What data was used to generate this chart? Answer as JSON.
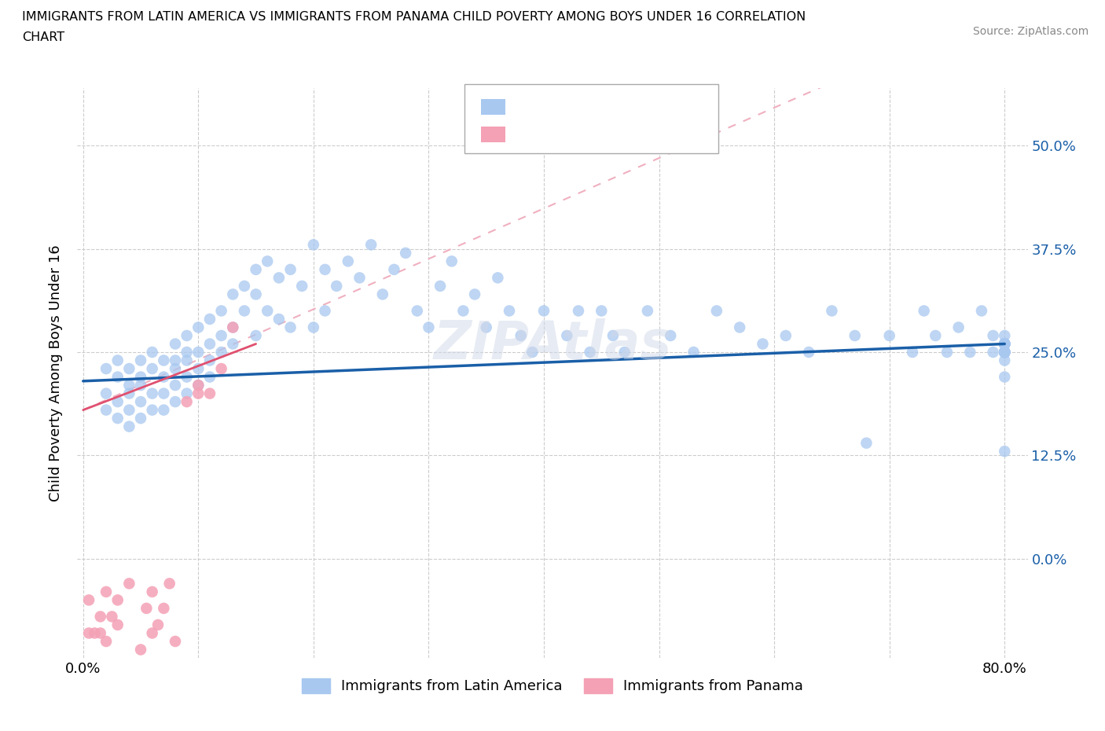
{
  "title": "IMMIGRANTS FROM LATIN AMERICA VS IMMIGRANTS FROM PANAMA CHILD POVERTY AMONG BOYS UNDER 16 CORRELATION\nCHART",
  "source_text": "Source: ZipAtlas.com",
  "ylabel": "Child Poverty Among Boys Under 16",
  "xlim": [
    -0.005,
    0.82
  ],
  "ylim": [
    -0.12,
    0.57
  ],
  "yticks": [
    0.0,
    0.125,
    0.25,
    0.375,
    0.5
  ],
  "yticklabels": [
    "0.0%",
    "12.5%",
    "25.0%",
    "37.5%",
    "50.0%"
  ],
  "xticks": [
    0.0,
    0.1,
    0.2,
    0.3,
    0.4,
    0.5,
    0.6,
    0.7,
    0.8
  ],
  "xticklabels": [
    "0.0%",
    "",
    "",
    "",
    "",
    "",
    "",
    "",
    "80.0%"
  ],
  "scatter1_color": "#a8c8f0",
  "scatter2_color": "#f4a0b5",
  "line1_color": "#1a5fa8",
  "trendline2_color": "#e8a0b0",
  "watermark": "ZIPAtlas",
  "legend1_label": "Immigrants from Latin America",
  "legend2_label": "Immigrants from Panama",
  "scatter1_x": [
    0.02,
    0.02,
    0.02,
    0.03,
    0.03,
    0.03,
    0.03,
    0.04,
    0.04,
    0.04,
    0.04,
    0.04,
    0.05,
    0.05,
    0.05,
    0.05,
    0.05,
    0.06,
    0.06,
    0.06,
    0.06,
    0.07,
    0.07,
    0.07,
    0.07,
    0.08,
    0.08,
    0.08,
    0.08,
    0.08,
    0.09,
    0.09,
    0.09,
    0.09,
    0.09,
    0.1,
    0.1,
    0.1,
    0.1,
    0.11,
    0.11,
    0.11,
    0.11,
    0.12,
    0.12,
    0.12,
    0.13,
    0.13,
    0.13,
    0.14,
    0.14,
    0.15,
    0.15,
    0.15,
    0.16,
    0.16,
    0.17,
    0.17,
    0.18,
    0.18,
    0.19,
    0.2,
    0.2,
    0.21,
    0.21,
    0.22,
    0.23,
    0.24,
    0.25,
    0.26,
    0.27,
    0.28,
    0.29,
    0.3,
    0.31,
    0.32,
    0.33,
    0.34,
    0.35,
    0.36,
    0.37,
    0.38,
    0.39,
    0.4,
    0.42,
    0.43,
    0.44,
    0.45,
    0.46,
    0.47,
    0.49,
    0.51,
    0.53,
    0.55,
    0.57,
    0.59,
    0.61,
    0.63,
    0.65,
    0.67,
    0.68,
    0.7,
    0.72,
    0.73,
    0.74,
    0.75,
    0.76,
    0.77,
    0.78,
    0.79,
    0.79,
    0.8,
    0.8,
    0.8,
    0.8,
    0.8,
    0.8,
    0.8,
    0.8,
    0.8,
    0.8,
    0.8,
    0.8,
    0.8,
    0.8,
    0.8,
    0.8,
    0.8,
    0.8,
    0.8,
    0.8,
    0.8,
    0.8,
    0.8,
    0.8,
    0.8,
    0.8,
    0.8,
    0.8,
    0.8,
    0.8,
    0.8,
    0.8
  ],
  "scatter1_y": [
    0.2,
    0.23,
    0.18,
    0.22,
    0.19,
    0.24,
    0.17,
    0.21,
    0.2,
    0.23,
    0.18,
    0.16,
    0.24,
    0.22,
    0.19,
    0.17,
    0.21,
    0.23,
    0.2,
    0.18,
    0.25,
    0.22,
    0.2,
    0.24,
    0.18,
    0.26,
    0.23,
    0.21,
    0.19,
    0.24,
    0.27,
    0.24,
    0.22,
    0.2,
    0.25,
    0.28,
    0.25,
    0.23,
    0.21,
    0.29,
    0.26,
    0.24,
    0.22,
    0.3,
    0.27,
    0.25,
    0.32,
    0.28,
    0.26,
    0.33,
    0.3,
    0.35,
    0.32,
    0.27,
    0.36,
    0.3,
    0.34,
    0.29,
    0.35,
    0.28,
    0.33,
    0.38,
    0.28,
    0.35,
    0.3,
    0.33,
    0.36,
    0.34,
    0.38,
    0.32,
    0.35,
    0.37,
    0.3,
    0.28,
    0.33,
    0.36,
    0.3,
    0.32,
    0.28,
    0.34,
    0.3,
    0.27,
    0.25,
    0.3,
    0.27,
    0.3,
    0.25,
    0.3,
    0.27,
    0.25,
    0.3,
    0.27,
    0.25,
    0.3,
    0.28,
    0.26,
    0.27,
    0.25,
    0.3,
    0.27,
    0.14,
    0.27,
    0.25,
    0.3,
    0.27,
    0.25,
    0.28,
    0.25,
    0.3,
    0.27,
    0.25,
    0.13,
    0.27,
    0.25,
    0.26,
    0.24,
    0.22,
    0.26,
    0.25,
    0.26,
    0.25,
    0.26,
    0.25,
    0.25,
    0.26,
    0.25,
    0.26,
    0.25,
    0.26,
    0.25,
    0.26,
    0.25,
    0.26,
    0.25,
    0.26,
    0.25,
    0.26,
    0.25,
    0.26,
    0.25,
    0.26,
    0.25,
    0.26
  ],
  "scatter2_x": [
    0.005,
    0.005,
    0.01,
    0.015,
    0.015,
    0.02,
    0.02,
    0.025,
    0.03,
    0.03,
    0.04,
    0.05,
    0.055,
    0.06,
    0.06,
    0.065,
    0.07,
    0.075,
    0.08,
    0.09,
    0.1,
    0.1,
    0.11,
    0.12,
    0.13
  ],
  "scatter2_y": [
    -0.09,
    -0.05,
    -0.09,
    -0.07,
    -0.09,
    -0.1,
    -0.04,
    -0.07,
    -0.05,
    -0.08,
    -0.03,
    -0.11,
    -0.06,
    -0.09,
    -0.04,
    -0.08,
    -0.06,
    -0.03,
    -0.1,
    0.19,
    0.21,
    0.2,
    0.2,
    0.23,
    0.28
  ]
}
